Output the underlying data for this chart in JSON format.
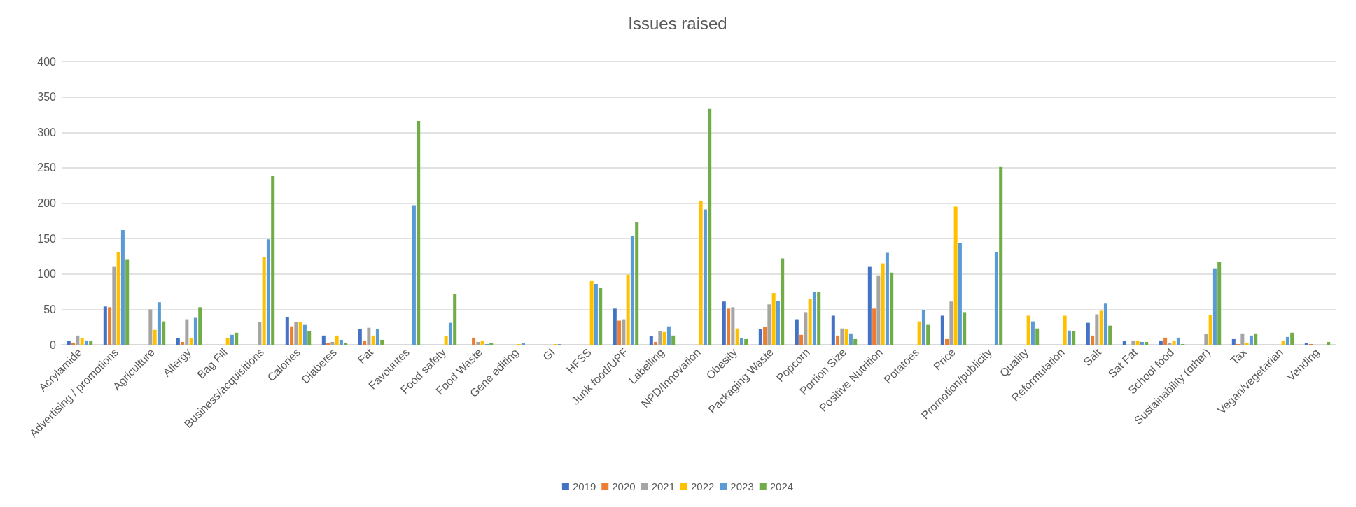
{
  "chart_data": {
    "type": "bar",
    "title": "Issues raised",
    "categories": [
      "Acrylamide",
      "Advertising / promotions",
      "Agriculture",
      "Allergy",
      "Bag Fill",
      "Business/acquisitions",
      "Calories",
      "Diabetes",
      "Fat",
      "Favourites",
      "Food safety",
      "Food Waste",
      "Gene editing",
      "GI",
      "HFSS",
      "Junk food/UPF",
      "Labelling",
      "NPD/Innovation",
      "Obesity",
      "Packaging Waste",
      "Popcorn",
      "Portion Size",
      "Positive Nutrition",
      "Potatoes",
      "Price",
      "Promotion/publicity",
      "Quality",
      "Reformulation",
      "Salt",
      "Sat Fat",
      "School food",
      "Sustainability (other)",
      "Tax",
      "Vegan/vegetarian",
      "Vending"
    ],
    "series": [
      {
        "name": "2019",
        "color": "#4472c4",
        "values": [
          5,
          54,
          null,
          9,
          null,
          null,
          39,
          13,
          22,
          null,
          null,
          null,
          null,
          null,
          null,
          51,
          12,
          null,
          61,
          22,
          36,
          41,
          110,
          null,
          41,
          null,
          null,
          null,
          31,
          5,
          6,
          null,
          8,
          null,
          2
        ]
      },
      {
        "name": "2020",
        "color": "#ed7d31",
        "values": [
          3,
          53,
          null,
          4,
          null,
          null,
          26,
          2,
          6,
          null,
          null,
          10,
          null,
          null,
          null,
          34,
          4,
          null,
          51,
          25,
          14,
          13,
          51,
          null,
          8,
          null,
          null,
          null,
          13,
          null,
          10,
          null,
          1,
          null,
          1
        ]
      },
      {
        "name": "2021",
        "color": "#a5a5a5",
        "values": [
          13,
          110,
          50,
          36,
          null,
          32,
          32,
          4,
          24,
          null,
          null,
          4,
          null,
          null,
          null,
          36,
          19,
          null,
          53,
          57,
          46,
          23,
          98,
          null,
          61,
          null,
          null,
          null,
          43,
          6,
          3,
          15,
          16,
          null,
          null
        ]
      },
      {
        "name": "2022",
        "color": "#ffc000",
        "values": [
          9,
          131,
          21,
          9,
          9,
          124,
          32,
          13,
          13,
          null,
          12,
          6,
          1,
          1,
          90,
          99,
          18,
          203,
          23,
          73,
          65,
          22,
          115,
          33,
          195,
          null,
          41,
          41,
          48,
          6,
          6,
          42,
          2,
          6,
          null
        ]
      },
      {
        "name": "2023",
        "color": "#5b9bd5",
        "values": [
          6,
          162,
          60,
          38,
          14,
          149,
          28,
          7,
          22,
          197,
          31,
          1,
          2,
          1,
          86,
          154,
          26,
          191,
          9,
          62,
          75,
          16,
          130,
          49,
          144,
          131,
          33,
          20,
          59,
          4,
          10,
          108,
          13,
          11,
          null
        ]
      },
      {
        "name": "2024",
        "color": "#70ad47",
        "values": [
          5,
          120,
          33,
          53,
          17,
          239,
          19,
          3,
          7,
          316,
          72,
          2,
          null,
          null,
          80,
          173,
          13,
          333,
          8,
          122,
          75,
          8,
          102,
          28,
          46,
          251,
          23,
          19,
          27,
          4,
          1,
          117,
          16,
          17,
          4
        ]
      }
    ],
    "ylim": [
      0,
      400
    ],
    "yticks": [
      0,
      50,
      100,
      150,
      200,
      250,
      300,
      350,
      400
    ],
    "grid": "y",
    "legend": "bottom"
  }
}
